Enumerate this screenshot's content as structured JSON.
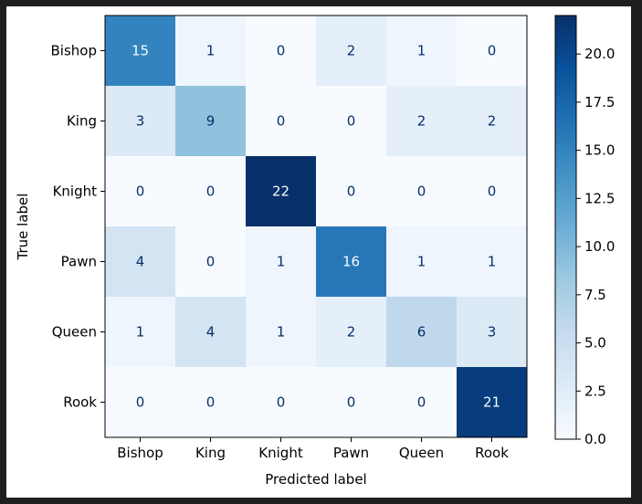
{
  "chart_data": {
    "type": "heatmap",
    "title": "",
    "xlabel": "Predicted label",
    "ylabel": "True label",
    "x_categories": [
      "Bishop",
      "King",
      "Knight",
      "Pawn",
      "Queen",
      "Rook"
    ],
    "y_categories": [
      "Bishop",
      "King",
      "Knight",
      "Pawn",
      "Queen",
      "Rook"
    ],
    "matrix": [
      [
        15,
        1,
        0,
        2,
        1,
        0
      ],
      [
        3,
        9,
        0,
        0,
        2,
        2
      ],
      [
        0,
        0,
        22,
        0,
        0,
        0
      ],
      [
        4,
        0,
        1,
        16,
        1,
        1
      ],
      [
        1,
        4,
        1,
        2,
        6,
        3
      ],
      [
        0,
        0,
        0,
        0,
        0,
        21
      ]
    ],
    "colormap": "Blues",
    "colorbar": {
      "range": [
        0,
        22
      ],
      "ticks": [
        "0.0",
        "2.5",
        "5.0",
        "7.5",
        "10.0",
        "12.5",
        "15.0",
        "17.5",
        "20.0"
      ]
    }
  }
}
